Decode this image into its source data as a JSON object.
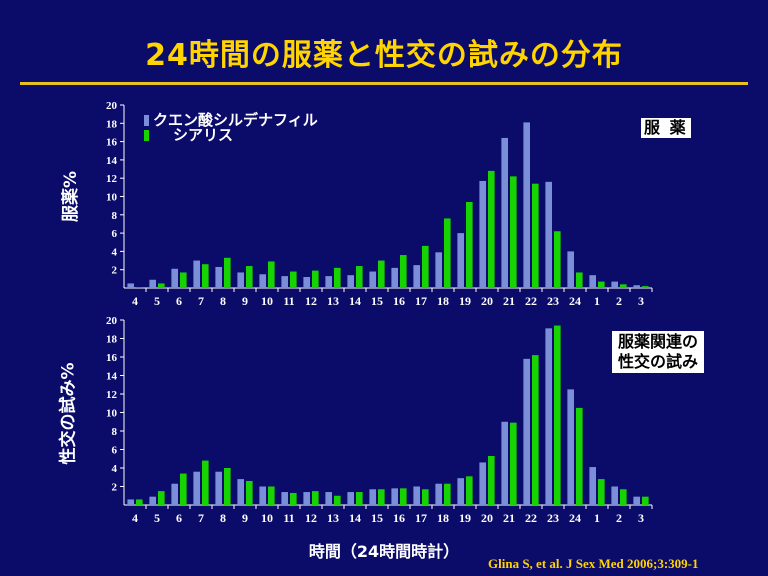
{
  "title": "24時間の服薬と性交の試みの分布",
  "xaxis_title": "時間（24時間時計）",
  "source": "Glina S, et al. J Sex Med 2006;3:309-1",
  "colors": {
    "background": "#0b0b6a",
    "title": "#ffd400",
    "series1": "#7b8fd8",
    "series2": "#17d400",
    "axis": "#ffffff"
  },
  "legend": {
    "items": [
      "クエン酸シルデナフィル",
      "シアリス"
    ]
  },
  "chart_data": [
    {
      "type": "bar",
      "panel_label": "服 薬",
      "ylabel": "服薬%",
      "ylim": [
        0,
        20
      ],
      "yticks": [
        2,
        4,
        6,
        8,
        10,
        12,
        14,
        16,
        18,
        20
      ],
      "categories": [
        "4",
        "5",
        "6",
        "7",
        "8",
        "9",
        "10",
        "11",
        "12",
        "13",
        "14",
        "15",
        "16",
        "17",
        "18",
        "19",
        "20",
        "21",
        "22",
        "23",
        "24",
        "1",
        "2",
        "3"
      ],
      "series": [
        {
          "name": "クエン酸シルデナフィル",
          "values": [
            0.5,
            0.9,
            2.1,
            3.0,
            2.3,
            1.7,
            1.5,
            1.3,
            1.2,
            1.3,
            1.4,
            1.8,
            2.2,
            2.5,
            3.9,
            6.0,
            11.7,
            16.4,
            18.1,
            11.6,
            4.0,
            1.4,
            0.7,
            0.3
          ]
        },
        {
          "name": "シアリス",
          "values": [
            0.1,
            0.5,
            1.7,
            2.6,
            3.3,
            2.4,
            2.9,
            1.8,
            1.9,
            2.2,
            2.4,
            3.0,
            3.6,
            4.6,
            7.6,
            9.4,
            12.8,
            12.2,
            11.4,
            6.2,
            1.7,
            0.7,
            0.4,
            0.2
          ]
        }
      ]
    },
    {
      "type": "bar",
      "panel_label": "服薬関連の性交の試み",
      "panel_label_lines": [
        "服薬関連の",
        "性交の試み"
      ],
      "ylabel": "性交の試み%",
      "ylim": [
        0,
        20
      ],
      "yticks": [
        2,
        4,
        6,
        8,
        10,
        12,
        14,
        16,
        18,
        20
      ],
      "categories": [
        "4",
        "5",
        "6",
        "7",
        "8",
        "9",
        "10",
        "11",
        "12",
        "13",
        "14",
        "15",
        "16",
        "17",
        "18",
        "19",
        "20",
        "21",
        "22",
        "23",
        "24",
        "1",
        "2",
        "3"
      ],
      "series": [
        {
          "name": "クエン酸シルデナフィル",
          "values": [
            0.6,
            0.9,
            2.3,
            3.6,
            3.6,
            2.8,
            2.0,
            1.4,
            1.4,
            1.4,
            1.4,
            1.7,
            1.8,
            2.0,
            2.3,
            2.9,
            4.6,
            9.0,
            15.8,
            19.1,
            12.5,
            4.1,
            2.0,
            0.9
          ]
        },
        {
          "name": "シアリス",
          "values": [
            0.6,
            1.5,
            3.4,
            4.8,
            4.0,
            2.6,
            2.0,
            1.3,
            1.5,
            1.0,
            1.4,
            1.7,
            1.8,
            1.7,
            2.3,
            3.1,
            5.3,
            8.9,
            16.2,
            19.4,
            10.5,
            2.8,
            1.7,
            0.9
          ]
        }
      ]
    }
  ]
}
